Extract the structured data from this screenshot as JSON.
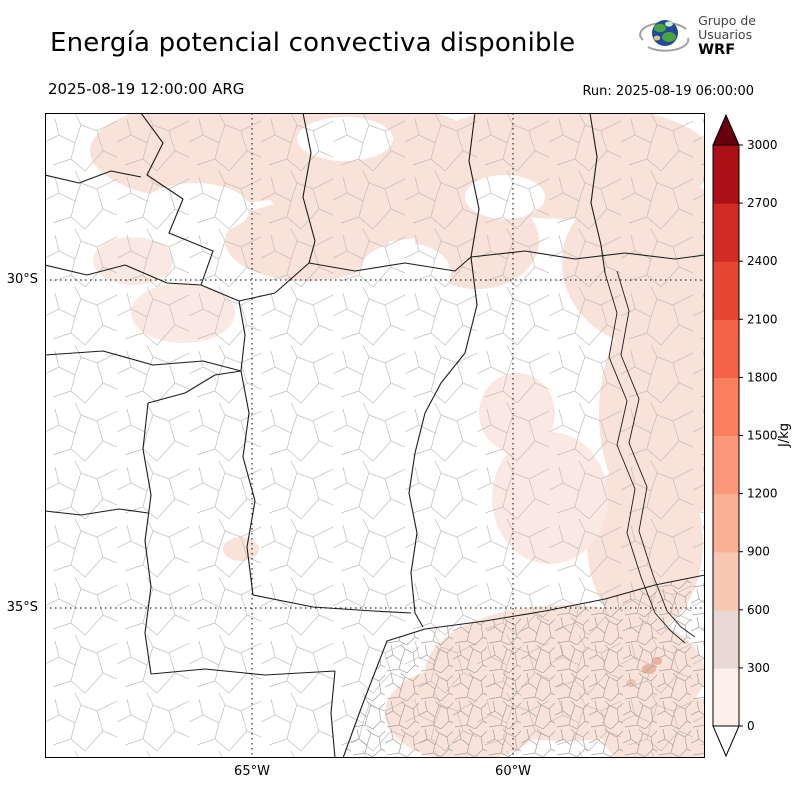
{
  "header": {
    "title": "Energía potencial convectiva disponible",
    "valid_time": "2025-08-19 12:00:00 ARG",
    "run_time": "Run: 2025-08-19 06:00:00"
  },
  "logo": {
    "line1": "Grupo de",
    "line2": "Usuarios",
    "line3": "WRF"
  },
  "map": {
    "lat_tick_30": "30°S",
    "lat_tick_35": "35°S",
    "lon_tick_65": "65°W",
    "lon_tick_60": "60°W"
  },
  "colorbar": {
    "unit": "J/kg",
    "ticks": [
      "0",
      "300",
      "600",
      "900",
      "1200",
      "1500",
      "1800",
      "2100",
      "2400",
      "2700",
      "3000"
    ],
    "colors": [
      "#fdf0e8",
      "#e8dad2",
      "#f7c7b1",
      "#f9b094",
      "#fa9879",
      "#fa7f5f",
      "#f56247",
      "#e74533",
      "#d22b26",
      "#ab1016"
    ],
    "over_color": "#67000d",
    "under_color": "#ffffff",
    "shading_light": "#f8e2d9"
  },
  "chart_data": {
    "type": "heatmap",
    "title": "Energía potencial convectiva disponible",
    "valid_time": "2025-08-19 12:00:00 ARG",
    "model_run": "Run: 2025-08-19 06:00:00",
    "unit": "J/kg",
    "colorbar_ticks": [
      0,
      300,
      600,
      900,
      1200,
      1500,
      1800,
      2100,
      2400,
      2700,
      3000
    ],
    "colorbar_range": [
      0,
      3000
    ],
    "x_axis_ticks": [
      "65°W",
      "60°W"
    ],
    "y_axis_ticks": [
      "30°S",
      "35°S"
    ],
    "legend_position": "right",
    "visible_field_summary": "CAPE shading over the mapped region is mostly pale (roughly 0–600 J/kg), concentrated in the north, along the east side and the southeast (Buenos Aires) sector; remainder of the domain is near 0."
  }
}
